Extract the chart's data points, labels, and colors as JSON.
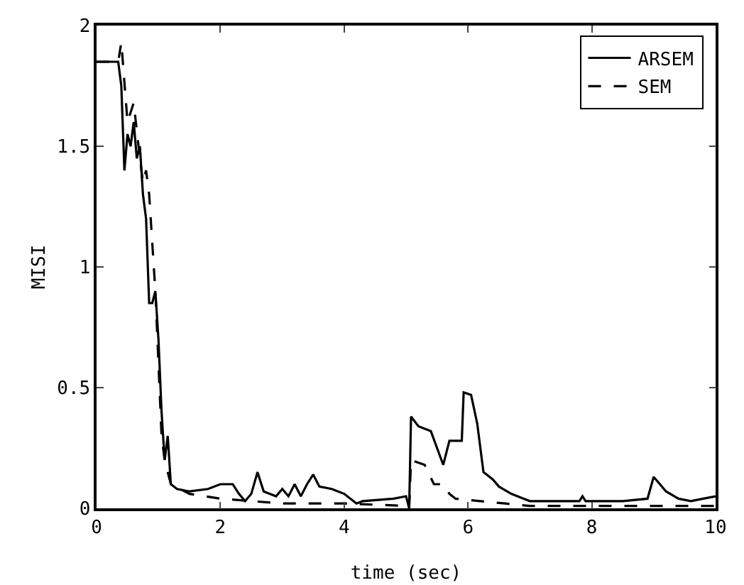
{
  "chart_data": {
    "type": "line",
    "xlabel": "time (sec)",
    "ylabel": "MISI",
    "xlim": [
      0,
      10
    ],
    "ylim": [
      0,
      2
    ],
    "xticks": [
      0,
      2,
      4,
      6,
      8,
      10
    ],
    "yticks": [
      0,
      0.5,
      1,
      1.5,
      2
    ],
    "legend": "top right",
    "grid": false,
    "series": [
      {
        "name": "ARSEM",
        "color": "#000000",
        "line_style": "solid",
        "x": [
          0,
          0.35,
          0.4,
          0.45,
          0.5,
          0.55,
          0.6,
          0.65,
          0.7,
          0.75,
          0.8,
          0.85,
          0.9,
          0.95,
          1.0,
          1.05,
          1.1,
          1.15,
          1.2,
          1.3,
          1.5,
          1.8,
          2.0,
          2.2,
          2.3,
          2.4,
          2.5,
          2.6,
          2.7,
          2.9,
          3.0,
          3.1,
          3.2,
          3.3,
          3.4,
          3.5,
          3.6,
          3.8,
          4.0,
          4.2,
          4.3,
          4.8,
          5.0,
          5.05,
          5.08,
          5.2,
          5.4,
          5.5,
          5.6,
          5.7,
          5.9,
          5.93,
          6.05,
          6.15,
          6.25,
          6.4,
          6.5,
          6.7,
          6.9,
          7.0,
          7.5,
          7.8,
          7.85,
          7.9,
          8.5,
          8.9,
          9.0,
          9.2,
          9.4,
          9.6,
          9.8,
          10
        ],
        "values": [
          1.85,
          1.85,
          1.75,
          1.4,
          1.55,
          1.5,
          1.6,
          1.45,
          1.5,
          1.3,
          1.2,
          0.85,
          0.85,
          0.9,
          0.7,
          0.4,
          0.2,
          0.3,
          0.1,
          0.08,
          0.07,
          0.08,
          0.1,
          0.1,
          0.06,
          0.03,
          0.06,
          0.15,
          0.07,
          0.05,
          0.08,
          0.05,
          0.1,
          0.05,
          0.1,
          0.14,
          0.09,
          0.08,
          0.06,
          0.02,
          0.03,
          0.04,
          0.05,
          0.0,
          0.38,
          0.34,
          0.32,
          0.25,
          0.18,
          0.28,
          0.28,
          0.48,
          0.47,
          0.35,
          0.15,
          0.12,
          0.09,
          0.06,
          0.04,
          0.03,
          0.03,
          0.03,
          0.05,
          0.03,
          0.03,
          0.04,
          0.13,
          0.07,
          0.04,
          0.03,
          0.04,
          0.05
        ]
      },
      {
        "name": "SEM",
        "color": "#000000",
        "line_style": "dashed",
        "x": [
          0,
          0.35,
          0.4,
          0.5,
          0.6,
          0.7,
          0.75,
          0.8,
          0.85,
          0.9,
          0.95,
          1.0,
          1.05,
          1.1,
          1.2,
          1.5,
          2.0,
          2.5,
          3,
          4,
          5.0,
          5.05,
          5.08,
          5.3,
          5.45,
          5.6,
          5.7,
          5.8,
          6.2,
          6.6,
          7,
          10
        ],
        "values": [
          1.85,
          1.85,
          1.93,
          1.6,
          1.68,
          1.45,
          1.35,
          1.4,
          1.3,
          1.1,
          0.9,
          0.6,
          0.3,
          0.2,
          0.1,
          0.06,
          0.04,
          0.03,
          0.02,
          0.02,
          0.01,
          0.0,
          0.2,
          0.18,
          0.1,
          0.1,
          0.06,
          0.04,
          0.03,
          0.02,
          0.01,
          0.01
        ]
      }
    ]
  }
}
